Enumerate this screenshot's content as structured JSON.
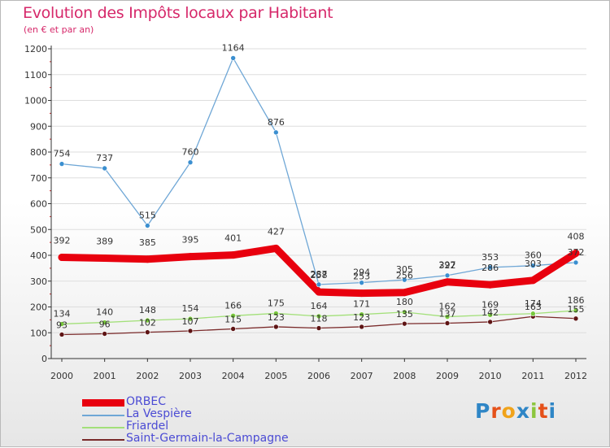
{
  "header": {
    "title": "Evolution des Impôts locaux par Habitant",
    "subtitle": "(en € et par an)"
  },
  "colors": {
    "title": "#d6286a",
    "legend_text": "#4b4bd4",
    "grid": "#dddddd",
    "axis": "#333333"
  },
  "logo": {
    "letters": [
      "P",
      "r",
      "o",
      "x",
      "i",
      "t",
      "i"
    ],
    "colors": [
      "#2f86c6",
      "#e5511a",
      "#f0a31b",
      "#2f86c6",
      "#8cc63e",
      "#e5511a",
      "#2f86c6"
    ]
  },
  "chart_data": {
    "type": "line",
    "title": "Evolution des Impôts locaux par Habitant",
    "subtitle": "(en € et par an)",
    "x": [
      "2000",
      "2001",
      "2002",
      "2003",
      "2004",
      "2005",
      "2006",
      "2007",
      "2008",
      "2009",
      "2010",
      "2011",
      "2012"
    ],
    "yticks": [
      0,
      100,
      200,
      300,
      400,
      500,
      600,
      700,
      800,
      900,
      1000,
      1100,
      1200
    ],
    "ylim": [
      0,
      1200
    ],
    "grid": true,
    "legend_position": "bottom-left",
    "series": [
      {
        "name": "ORBEC",
        "color": "#e8000e",
        "width": 9,
        "marker_radius": 4.5,
        "values": [
          392,
          389,
          385,
          395,
          401,
          427,
          258,
          253,
          256,
          297,
          286,
          303,
          408
        ],
        "labels": [
          "392",
          "389",
          "385",
          "395",
          "401",
          "427",
          "258",
          "253",
          "256",
          "297",
          "286",
          "303",
          "408"
        ],
        "label_position": "above"
      },
      {
        "name": "La Vespière",
        "color": "#6fa7d6",
        "marker_color": "#3b8fd0",
        "width": 1.3,
        "marker_radius": 3,
        "values": [
          754,
          737,
          515,
          760,
          1164,
          876,
          287,
          294,
          305,
          322,
          353,
          360,
          372
        ],
        "labels": [
          "754",
          "737",
          "515",
          "760",
          "1164",
          "876",
          "287",
          "294",
          "305",
          "322",
          "353",
          "360",
          "372"
        ],
        "label_position": "above"
      },
      {
        "name": "Friardel",
        "color": "#a3e07a",
        "marker_color": "#78c83c",
        "width": 1.3,
        "marker_radius": 3,
        "values": [
          134,
          140,
          148,
          154,
          166,
          175,
          164,
          171,
          180,
          162,
          169,
          174,
          186
        ],
        "labels": [
          "134",
          "140",
          "148",
          "154",
          "166",
          "175",
          "164",
          "171",
          "180",
          "162",
          "169",
          "174",
          "186"
        ],
        "label_position": "above"
      },
      {
        "name": "Saint-Germain-la-Campagne",
        "color": "#7a2a2a",
        "marker_color": "#5e1414",
        "width": 1.3,
        "marker_radius": 3,
        "values": [
          93,
          96,
          102,
          107,
          115,
          123,
          118,
          123,
          135,
          137,
          142,
          163,
          155
        ],
        "labels": [
          "93",
          "96",
          "102",
          "107",
          "115",
          "123",
          "118",
          "123",
          "135",
          "137",
          "142",
          "163",
          "155"
        ],
        "label_position": "above-near"
      }
    ]
  }
}
